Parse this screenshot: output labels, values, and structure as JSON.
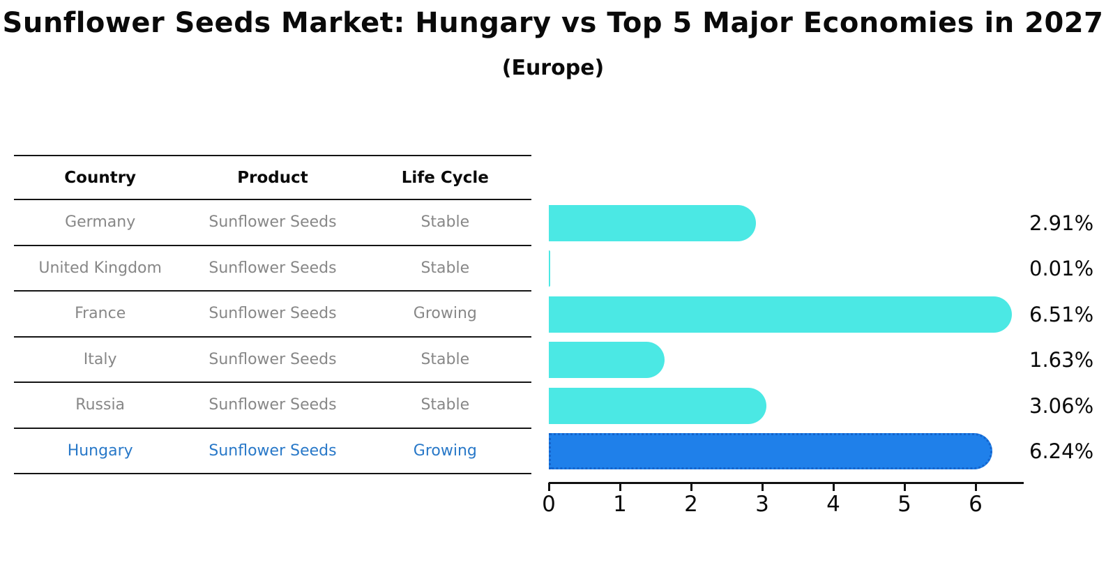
{
  "chart_data": {
    "type": "bar",
    "orientation": "horizontal",
    "title": "Sunflower Seeds Market: Hungary vs Top 5 Major Economies in 2027",
    "subtitle": "(Europe)",
    "categories": [
      "Germany",
      "United Kingdom",
      "France",
      "Italy",
      "Russia",
      "Hungary"
    ],
    "values": [
      2.91,
      0.01,
      6.51,
      1.63,
      3.06,
      6.24
    ],
    "value_labels": [
      "2.91%",
      "0.01%",
      "6.51%",
      "1.63%",
      "3.06%",
      "6.24%"
    ],
    "x_ticks": [
      0,
      1,
      2,
      3,
      4,
      5,
      6
    ],
    "xlim": [
      0,
      6.67
    ],
    "grid": false,
    "legend": "none",
    "highlight_category": "Hungary",
    "colors": {
      "bar": "#4BE8E4",
      "highlight_bar": "#1F80EA",
      "highlight_bar_border": "#1464CC",
      "highlight_text": "#2878c8",
      "text": "#0a0a0a",
      "muted_text": "#878787",
      "axis": "#111111"
    }
  },
  "table": {
    "headers": [
      "Country",
      "Product",
      "Life Cycle"
    ],
    "rows": [
      {
        "country": "Germany",
        "product": "Sunflower Seeds",
        "life_cycle": "Stable",
        "highlighted": false
      },
      {
        "country": "United Kingdom",
        "product": "Sunflower Seeds",
        "life_cycle": "Stable",
        "highlighted": false
      },
      {
        "country": "France",
        "product": "Sunflower Seeds",
        "life_cycle": "Growing",
        "highlighted": false
      },
      {
        "country": "Italy",
        "product": "Sunflower Seeds",
        "life_cycle": "Stable",
        "highlighted": false
      },
      {
        "country": "Russia",
        "product": "Sunflower Seeds",
        "life_cycle": "Stable",
        "highlighted": false
      },
      {
        "country": "Hungary",
        "product": "Sunflower Seeds",
        "life_cycle": "Growing",
        "highlighted": true
      }
    ]
  }
}
